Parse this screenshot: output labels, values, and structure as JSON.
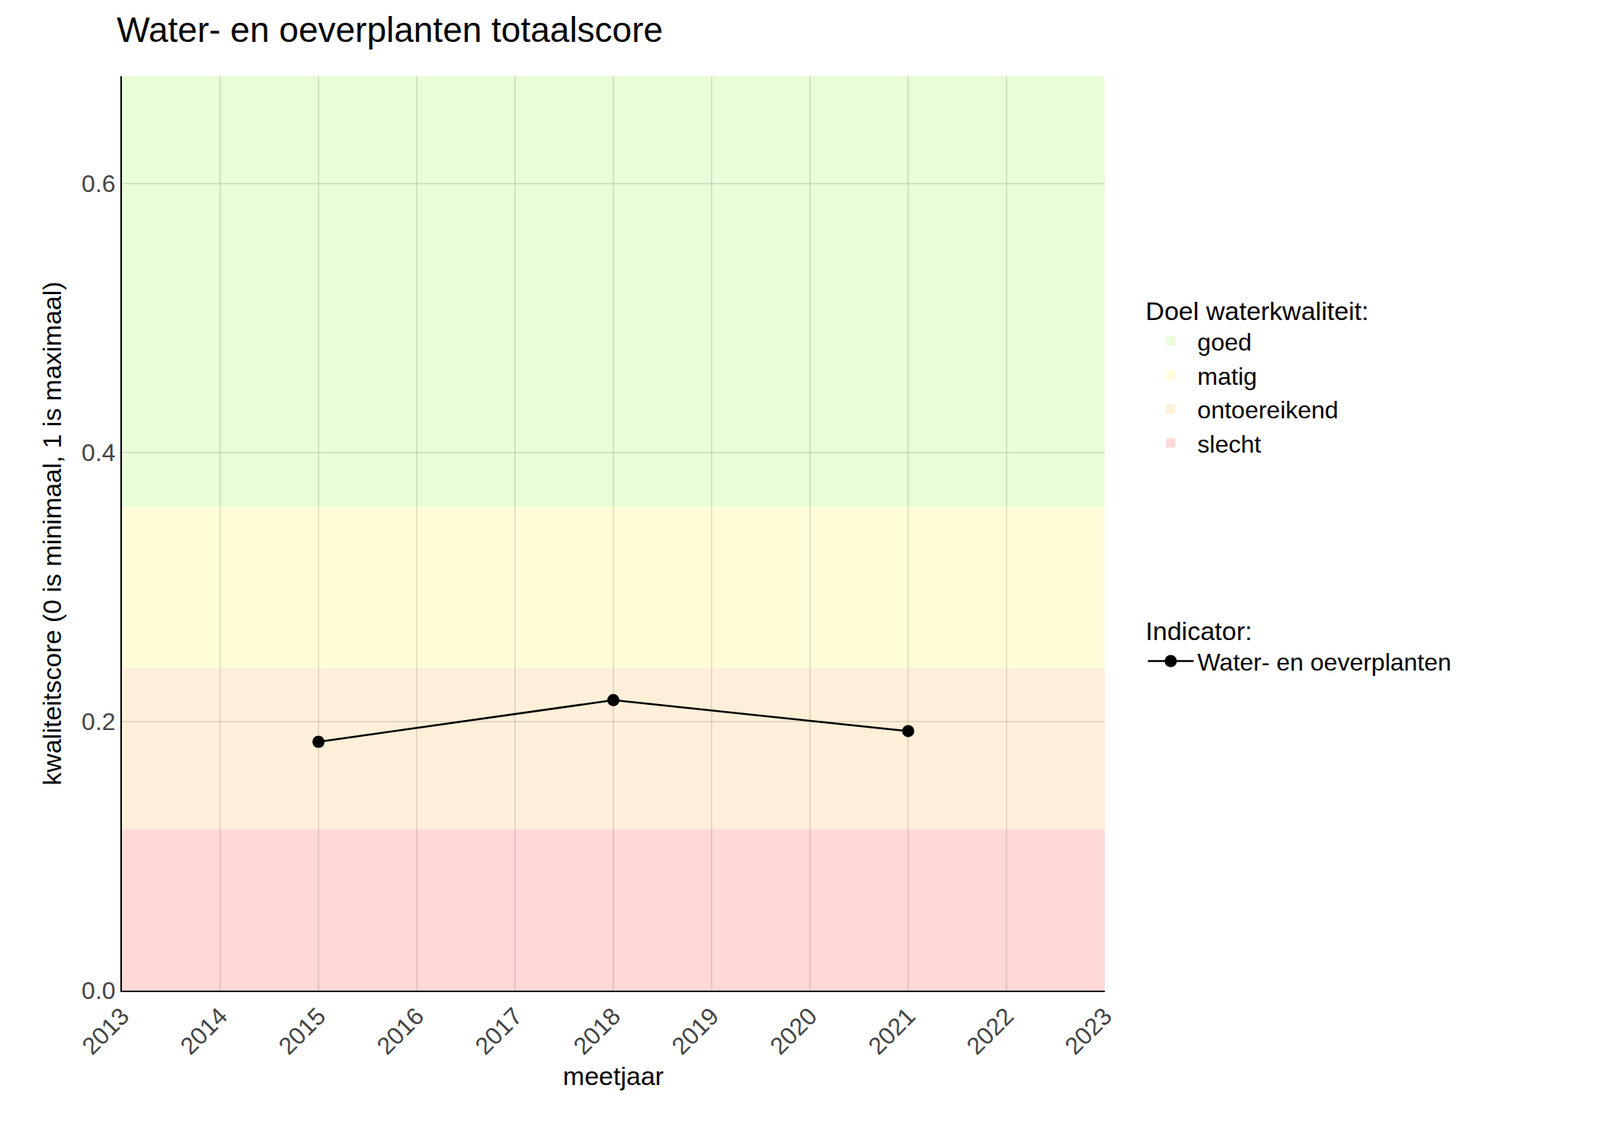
{
  "chart_data": {
    "type": "line",
    "title": "Water- en oeverplanten totaalscore",
    "x_label": "meetjaar",
    "y_label": "kwaliteitscore (0 is minimaal, 1 is maximaal)",
    "x": [
      2015,
      2018,
      2021
    ],
    "series": [
      {
        "name": "Water- en oeverplanten",
        "color": "#000000",
        "values": [
          0.185,
          0.216,
          0.193
        ],
        "marker": "circle",
        "line_style": "solid"
      }
    ],
    "xlim": [
      2013,
      2023
    ],
    "xticks": [
      2013,
      2014,
      2015,
      2016,
      2017,
      2018,
      2019,
      2020,
      2021,
      2022,
      2023
    ],
    "ylim": [
      0,
      0.68
    ],
    "yticks": [
      {
        "value": 0,
        "label": "0.0"
      },
      0.2,
      0.4,
      0.6
    ],
    "grid": true,
    "legend": "right",
    "bands_title": "Doel waterkwaliteit:",
    "series_title": "Indicator:",
    "bands": [
      {
        "name": "goed",
        "from": 0.36,
        "to": 0.68,
        "color": "#e8fdd8"
      },
      {
        "name": "matig",
        "from": 0.24,
        "to": 0.36,
        "color": "#fffdd8"
      },
      {
        "name": "ontoereikend",
        "from": 0.12,
        "to": 0.24,
        "color": "#fef0d8"
      },
      {
        "name": "slecht",
        "from": 0,
        "to": 0.12,
        "color": "#ffd8d8"
      }
    ]
  }
}
